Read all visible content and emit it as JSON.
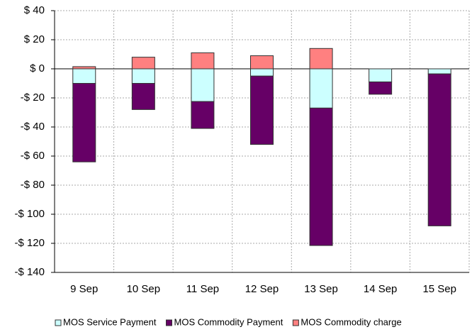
{
  "chart_data": {
    "type": "stacked-bar",
    "categories": [
      "9 Sep",
      "10 Sep",
      "11 Sep",
      "12 Sep",
      "13 Sep",
      "14 Sep",
      "15 Sep"
    ],
    "series": [
      {
        "name": "MOS Service Payment",
        "color": "#ccffff",
        "values": [
          -10,
          -10,
          -22.5,
          -5,
          -27,
          -9,
          -3.5
        ]
      },
      {
        "name": "MOS Commodity Payment",
        "color": "#660066",
        "values": [
          -54,
          -18,
          -18.5,
          -47,
          -94.5,
          -8.5,
          -104.5
        ]
      },
      {
        "name": "MOS Commodity charge",
        "color": "#ff8080",
        "values": [
          1.5,
          8,
          11,
          9,
          14,
          0,
          0
        ]
      }
    ],
    "ylim": [
      -140,
      40
    ],
    "yticks": [
      {
        "value": 40,
        "label": "$ 40"
      },
      {
        "value": 20,
        "label": "$ 20"
      },
      {
        "value": 0,
        "label": "$ 0"
      },
      {
        "value": -20,
        "label": "-$ 20"
      },
      {
        "value": -40,
        "label": "-$ 40"
      },
      {
        "value": -60,
        "label": "-$ 60"
      },
      {
        "value": -80,
        "label": "-$ 80"
      },
      {
        "value": -100,
        "label": "-$ 100"
      },
      {
        "value": -120,
        "label": "-$ 120"
      },
      {
        "value": -140,
        "label": "-$ 140"
      }
    ],
    "grid": true,
    "legend": "bottom"
  }
}
